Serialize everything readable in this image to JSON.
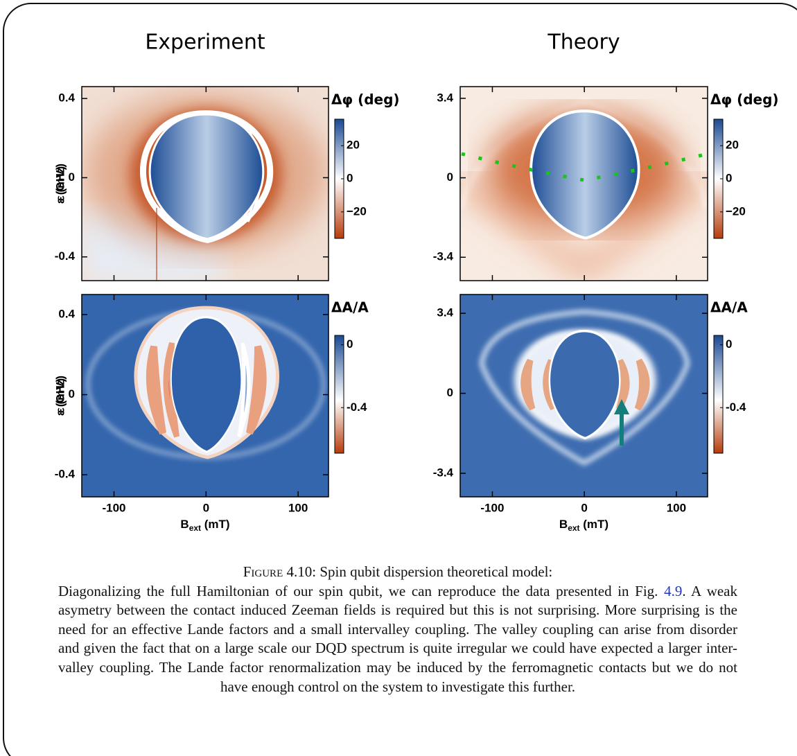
{
  "chart_data": [
    {
      "type": "heatmap",
      "title": "Experiment",
      "y_label": "ε (mV)",
      "xlim": [
        -135,
        133
      ],
      "xticks": [
        -100,
        0,
        100
      ],
      "ylim": [
        -0.52,
        0.46
      ],
      "yticks": [
        -0.4,
        0,
        0.4
      ],
      "colorbar": {
        "label": "Δφ (deg)",
        "lim": [
          -36,
          36
        ],
        "ticks": [
          {
            "value": -20,
            "label": "−20"
          },
          0,
          20
        ]
      }
    },
    {
      "type": "heatmap",
      "title": "Theory",
      "y_label": "ε (GHz)",
      "xlim": [
        -135,
        134
      ],
      "xticks": [
        -100,
        0,
        100
      ],
      "ylim": [
        -4.4,
        3.9
      ],
      "yticks": [
        -3.4,
        0,
        3.4
      ],
      "colorbar": {
        "label": "Δφ (deg)",
        "lim": [
          -36,
          36
        ],
        "ticks": [
          {
            "value": -20,
            "label": "−20"
          },
          0,
          20
        ]
      }
    },
    {
      "type": "heatmap",
      "y_label": "ε (mV)",
      "x_label": [
        "B",
        "ext",
        " (mT)"
      ],
      "xlim": [
        -135,
        133
      ],
      "xticks": [
        -100,
        0,
        100
      ],
      "ylim": [
        -0.51,
        0.5
      ],
      "yticks": [
        -0.4,
        0,
        0.4
      ],
      "colorbar": {
        "label": "ΔA/A",
        "lim": [
          -0.69,
          0.06
        ],
        "ticks": [
          -0.4,
          0
        ]
      }
    },
    {
      "type": "heatmap",
      "y_label": "ε (GHz)",
      "x_label": [
        "B",
        "ext",
        " (mT)"
      ],
      "xlim": [
        -135,
        134
      ],
      "xticks": [
        -100,
        0,
        100
      ],
      "ylim": [
        -4.4,
        4.2
      ],
      "yticks": [
        -3.4,
        0,
        3.4
      ],
      "colorbar": {
        "label": "ΔA/A",
        "lim": [
          -0.69,
          0.06
        ],
        "ticks": [
          -0.4,
          0
        ]
      }
    }
  ],
  "caption": {
    "label": "Figure 4.10:",
    "title": "Spin qubit dispersion theoretical model:",
    "body_before": "Diagonalizing the full Hamiltonian of our spin qubit, we can reproduce the data presented in Fig. ",
    "link": "4.9",
    "body_after": ". A weak asymetry between the contact induced Zeeman fields is required but this is not surprising. More surprising is the need for an effective Lande factors and a small intervalley coupling. The valley coupling can arise from disorder and given the fact that on a large scale our DQD spectrum is quite irregular we could have expected a larger inter-valley coupling. The Lande factor renormalization may be induced by the ferromagnetic contacts but we do not have enough control on the system to investigate this further."
  }
}
